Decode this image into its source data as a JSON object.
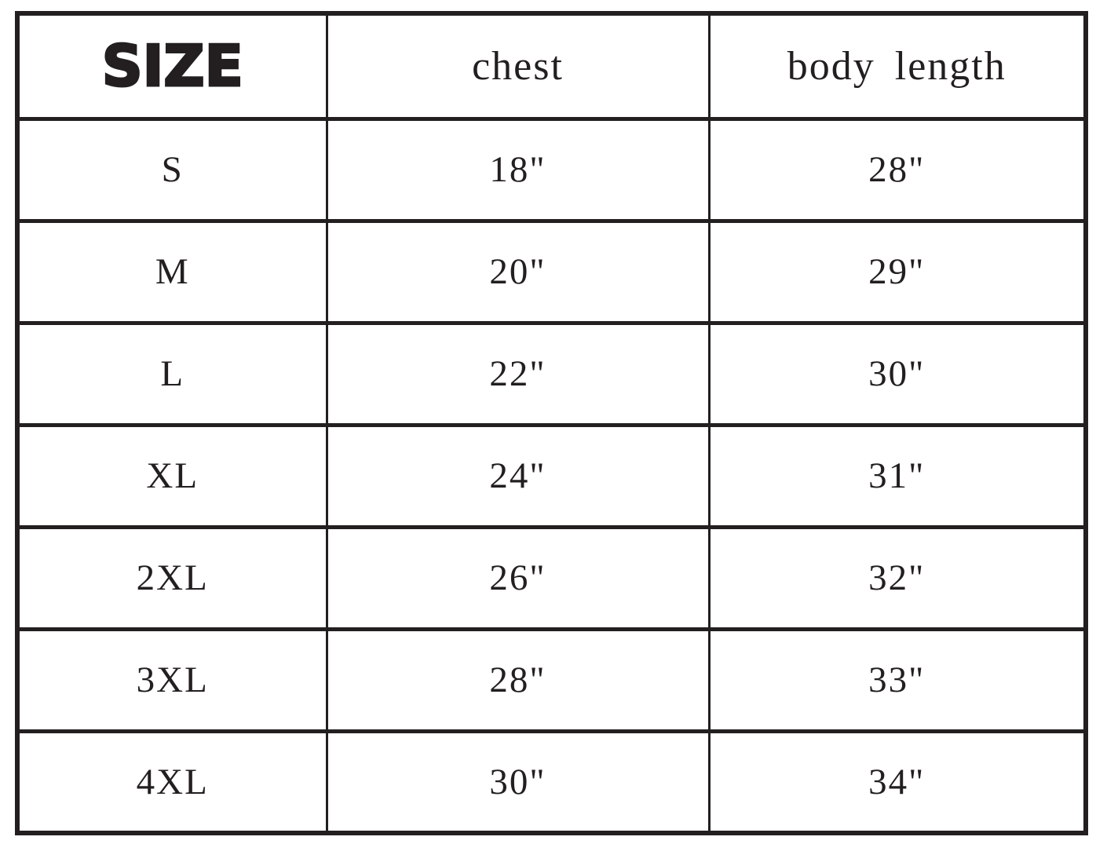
{
  "colors": {
    "border": "#231f20",
    "text": "#231f20",
    "background": "#ffffff"
  },
  "table": {
    "columns": [
      {
        "key": "size",
        "label": "SIZE"
      },
      {
        "key": "chest",
        "label": "chest"
      },
      {
        "key": "body_length",
        "label": "body length"
      }
    ],
    "rows": [
      {
        "size": "S",
        "chest": "18\"",
        "body_length": "28\""
      },
      {
        "size": "M",
        "chest": "20\"",
        "body_length": "29\""
      },
      {
        "size": "L",
        "chest": "22\"",
        "body_length": "30\""
      },
      {
        "size": "XL",
        "chest": "24\"",
        "body_length": "31\""
      },
      {
        "size": "2XL",
        "chest": "26\"",
        "body_length": "32\""
      },
      {
        "size": "3XL",
        "chest": "28\"",
        "body_length": "33\""
      },
      {
        "size": "4XL",
        "chest": "30\"",
        "body_length": "34\""
      }
    ]
  },
  "chart_data": {
    "type": "table",
    "title": "SIZE",
    "columns": [
      "SIZE",
      "chest",
      "body length"
    ],
    "rows": [
      [
        "S",
        "18\"",
        "28\""
      ],
      [
        "M",
        "20\"",
        "29\""
      ],
      [
        "L",
        "22\"",
        "30\""
      ],
      [
        "XL",
        "24\"",
        "31\""
      ],
      [
        "2XL",
        "26\"",
        "32\""
      ],
      [
        "3XL",
        "28\"",
        "33\""
      ],
      [
        "4XL",
        "30\"",
        "34\""
      ]
    ]
  }
}
